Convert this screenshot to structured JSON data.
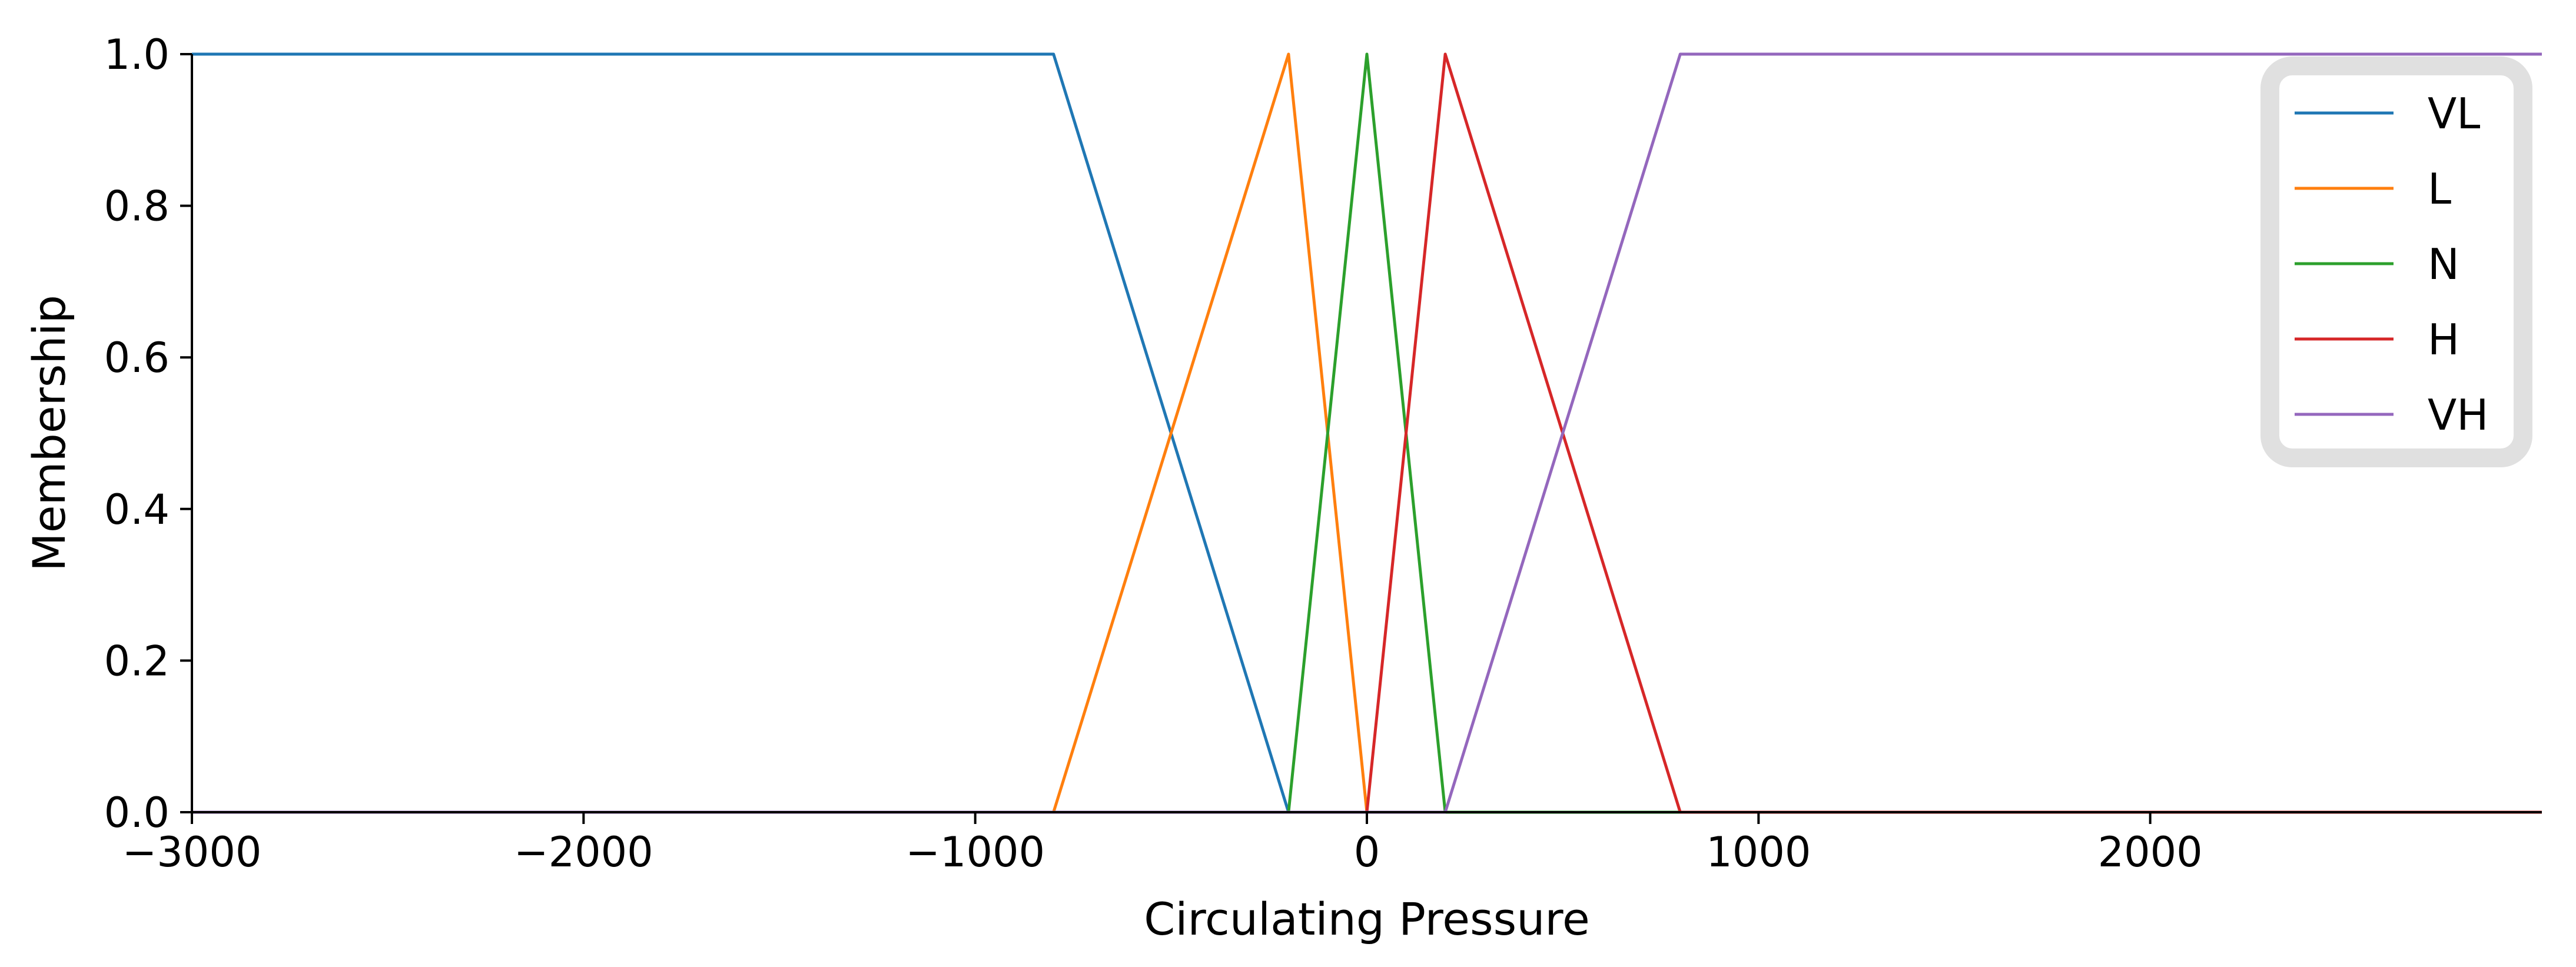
{
  "chart_data": {
    "type": "line",
    "title": "",
    "xlabel": "Circulating Pressure",
    "ylabel": "Membership",
    "xlim": [
      -3000,
      3000
    ],
    "ylim": [
      0,
      1
    ],
    "xticks": [
      -3000,
      -2000,
      -1000,
      0,
      1000,
      2000
    ],
    "xtick_labels": [
      "−3000",
      "−2000",
      "−1000",
      "0",
      "1000",
      "2000"
    ],
    "yticks": [
      0,
      0.2,
      0.4,
      0.6,
      0.8,
      1.0
    ],
    "ytick_labels": [
      "0.0",
      "0.2",
      "0.4",
      "0.6",
      "0.8",
      "1.0"
    ],
    "grid": false,
    "legend_position": "top-right",
    "series": [
      {
        "name": "VL",
        "color": "#1f77b4",
        "x": [
          -3000,
          -800,
          -200,
          3000
        ],
        "y": [
          1,
          1,
          0,
          0
        ]
      },
      {
        "name": "L",
        "color": "#ff7f0e",
        "x": [
          -3000,
          -800,
          -200,
          0,
          3000
        ],
        "y": [
          0,
          0,
          1,
          0,
          0
        ]
      },
      {
        "name": "N",
        "color": "#2ca02c",
        "x": [
          -3000,
          -200,
          0,
          200,
          3000
        ],
        "y": [
          0,
          0,
          1,
          0,
          0
        ]
      },
      {
        "name": "H",
        "color": "#d62728",
        "x": [
          -3000,
          0,
          200,
          800,
          3000
        ],
        "y": [
          0,
          0,
          1,
          0,
          0
        ]
      },
      {
        "name": "VH",
        "color": "#9467bd",
        "x": [
          -3000,
          200,
          800,
          3000
        ],
        "y": [
          0,
          0,
          1,
          1
        ]
      }
    ]
  }
}
